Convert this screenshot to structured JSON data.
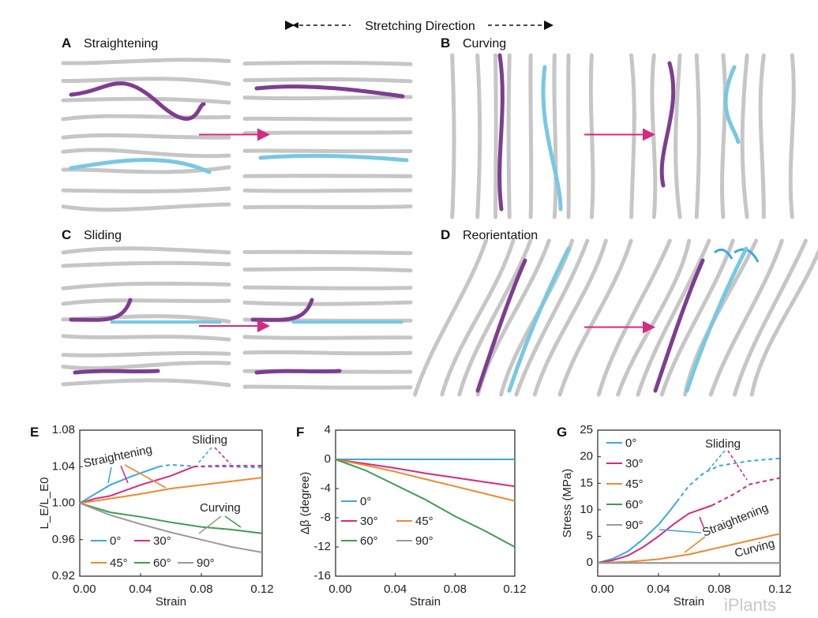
{
  "header": {
    "stretching_direction": "Stretching Direction"
  },
  "panels": [
    {
      "letter": "A",
      "title": "Straightening"
    },
    {
      "letter": "B",
      "title": "Curving"
    },
    {
      "letter": "C",
      "title": "Sliding"
    },
    {
      "letter": "D",
      "title": "Reorientation"
    },
    {
      "letter": "E",
      "title": ""
    },
    {
      "letter": "F",
      "title": ""
    },
    {
      "letter": "G",
      "title": ""
    }
  ],
  "colors": {
    "0": "#3aa8df",
    "30": "#d42a80",
    "45": "#ee8a2e",
    "60": "#3c9e50",
    "90": "#9b9b9b",
    "highlight_purple": "#7e3d8f",
    "highlight_cyan": "#78c8e2",
    "fiber": "#c6c6c6",
    "stretch_arrow": "#d42a80"
  },
  "watermark": "iPlants",
  "chart_data": [
    {
      "panel": "E",
      "type": "line",
      "xlabel": "Strain",
      "ylabel": "L_E/L_E0",
      "xlim": [
        0,
        0.12
      ],
      "ylim": [
        0.92,
        1.08
      ],
      "xticks": [
        "0.00",
        "0.04",
        "0.08",
        "0.12"
      ],
      "yticks": [
        "0.92",
        "0.96",
        "1.00",
        "1.04",
        "1.08"
      ],
      "legend": {
        "placement": "bottom-left",
        "entries": [
          "0°",
          "30°",
          "45°",
          "60°",
          "90°"
        ]
      },
      "annotations": [
        "Straightening",
        "Sliding",
        "Curving"
      ],
      "series": [
        {
          "name": "0°",
          "color_key": "0",
          "x": [
            0,
            0.02,
            0.035,
            0.052
          ],
          "y": [
            1.0,
            1.02,
            1.03,
            1.04
          ],
          "dashed_x": [
            0.052,
            0.06,
            0.08,
            0.1,
            0.12
          ],
          "dashed_y": [
            1.04,
            1.042,
            1.04,
            1.04,
            1.039
          ]
        },
        {
          "name": "30°",
          "color_key": "30",
          "x": [
            0,
            0.01,
            0.02,
            0.04,
            0.06,
            0.075
          ],
          "y": [
            1.0,
            1.005,
            1.008,
            1.02,
            1.03,
            1.04
          ],
          "dashed_x": [
            0.075,
            0.09,
            0.1,
            0.12
          ],
          "dashed_y": [
            1.04,
            1.041,
            1.041,
            1.041
          ]
        },
        {
          "name": "45°",
          "color_key": "45",
          "x": [
            0,
            0.02,
            0.04,
            0.06,
            0.08,
            0.1,
            0.12
          ],
          "y": [
            1.0,
            1.005,
            1.01,
            1.016,
            1.02,
            1.024,
            1.028
          ]
        },
        {
          "name": "60°",
          "color_key": "60",
          "x": [
            0,
            0.02,
            0.04,
            0.06,
            0.08,
            0.1,
            0.12
          ],
          "y": [
            1.0,
            0.99,
            0.985,
            0.979,
            0.974,
            0.971,
            0.967
          ]
        },
        {
          "name": "90°",
          "color_key": "90",
          "x": [
            0,
            0.02,
            0.04,
            0.06,
            0.08,
            0.1,
            0.12
          ],
          "y": [
            1.0,
            0.987,
            0.977,
            0.968,
            0.96,
            0.952,
            0.946
          ]
        }
      ]
    },
    {
      "panel": "F",
      "type": "line",
      "xlabel": "Strain",
      "ylabel": "Δβ (degree)",
      "xlim": [
        0,
        0.12
      ],
      "ylim": [
        -16,
        4
      ],
      "xticks": [
        "0.00",
        "0.04",
        "0.08",
        "0.12"
      ],
      "yticks": [
        "-16",
        "-12",
        "-8",
        "-4",
        "0",
        "4"
      ],
      "legend": {
        "placement": "bottom-left",
        "entries": [
          "0°",
          "30°",
          "45°",
          "60°",
          "90°"
        ]
      },
      "series": [
        {
          "name": "0°",
          "color_key": "0",
          "x": [
            0,
            0.12
          ],
          "y": [
            0,
            0
          ]
        },
        {
          "name": "30°",
          "color_key": "30",
          "x": [
            0,
            0.02,
            0.04,
            0.06,
            0.08,
            0.1,
            0.12
          ],
          "y": [
            0,
            -0.6,
            -1.2,
            -1.9,
            -2.5,
            -3.1,
            -3.7
          ]
        },
        {
          "name": "45°",
          "color_key": "45",
          "x": [
            0,
            0.02,
            0.04,
            0.06,
            0.08,
            0.1,
            0.12
          ],
          "y": [
            0,
            -0.8,
            -1.7,
            -2.7,
            -3.7,
            -4.7,
            -5.7
          ]
        },
        {
          "name": "60°",
          "color_key": "60",
          "x": [
            0,
            0.02,
            0.04,
            0.06,
            0.08,
            0.1,
            0.12
          ],
          "y": [
            0,
            -1.5,
            -3.5,
            -5.5,
            -7.8,
            -9.8,
            -12
          ]
        }
      ]
    },
    {
      "panel": "G",
      "type": "line",
      "xlabel": "Strain",
      "ylabel": "Stress (MPa)",
      "xlim": [
        0,
        0.12
      ],
      "ylim": [
        -2.5,
        25
      ],
      "xticks": [
        "0.00",
        "0.04",
        "0.08",
        "0.12"
      ],
      "yticks": [
        "0",
        "5",
        "10",
        "15",
        "20",
        "25"
      ],
      "legend": {
        "placement": "top-left",
        "entries": [
          "0°",
          "30°",
          "45°",
          "60°",
          "90°"
        ]
      },
      "annotations": [
        "Sliding",
        "Straightening",
        "Curving"
      ],
      "series": [
        {
          "name": "0°",
          "color_key": "0",
          "x": [
            0,
            0.01,
            0.02,
            0.03,
            0.04,
            0.048,
            0.052
          ],
          "y": [
            0,
            0.8,
            2.2,
            4.5,
            7.2,
            10,
            11.5
          ],
          "dashed_x": [
            0.052,
            0.06,
            0.07,
            0.08,
            0.1,
            0.12
          ],
          "dashed_y": [
            11.5,
            14.5,
            17,
            18.3,
            19.2,
            19.7
          ]
        },
        {
          "name": "30°",
          "color_key": "30",
          "x": [
            0,
            0.01,
            0.02,
            0.03,
            0.04,
            0.05,
            0.06,
            0.075
          ],
          "y": [
            0,
            0.5,
            1.4,
            3,
            5,
            7.3,
            9.3,
            10.8
          ],
          "dashed_x": [
            0.075,
            0.09,
            0.1,
            0.12
          ],
          "dashed_y": [
            10.8,
            13,
            14.8,
            16
          ]
        },
        {
          "name": "45°",
          "color_key": "45",
          "x": [
            0,
            0.02,
            0.04,
            0.06,
            0.08,
            0.1,
            0.12
          ],
          "y": [
            0,
            0.2,
            0.7,
            1.6,
            2.9,
            4.2,
            5.5
          ]
        },
        {
          "name": "60°",
          "color_key": "60",
          "x": [
            0,
            0.12
          ],
          "y": [
            0,
            0
          ]
        },
        {
          "name": "90°",
          "color_key": "90",
          "x": [
            0,
            0.12
          ],
          "y": [
            0,
            0
          ]
        }
      ]
    }
  ]
}
